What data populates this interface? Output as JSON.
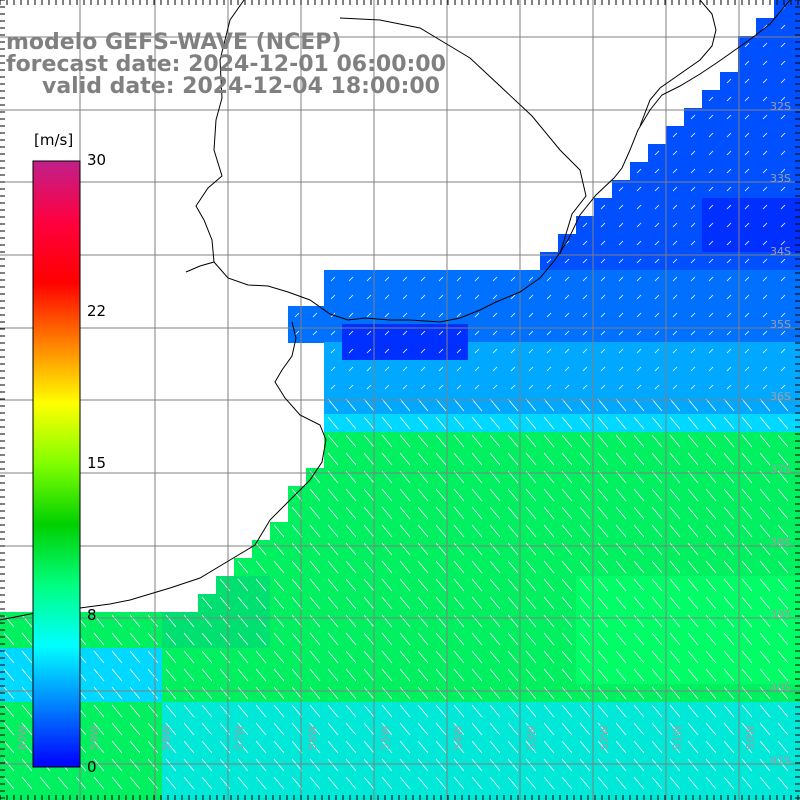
{
  "header": {
    "model": "modelo GEFS-WAVE (NCEP)",
    "forecast": "forecast date: 2024-12-01 06:00:00",
    "valid": "valid date: 2024-12-04 18:00:00"
  },
  "colorbar": {
    "unit": "[m/s]",
    "ticks": [
      "30",
      "22",
      "15",
      "8",
      "0"
    ],
    "colors": [
      "#0000ff",
      "#0080ff",
      "#00ffff",
      "#00ff80",
      "#00d000",
      "#80ff00",
      "#ffff00",
      "#ff8000",
      "#ff0000",
      "#ff0040",
      "#c0208a"
    ]
  },
  "lat_labels": [
    "32S",
    "33S",
    "34S",
    "35S",
    "36S",
    "37S",
    "38S",
    "39S",
    "40S",
    "41S"
  ],
  "lon_labels": [
    "60W",
    "59W",
    "58W",
    "57W",
    "56W",
    "55W",
    "54W",
    "53W",
    "52W",
    "51W",
    "50W"
  ],
  "colors": {
    "land": "#ffffff",
    "coast": "#000000",
    "grid": "#808080",
    "vector": "#ffffff"
  }
}
